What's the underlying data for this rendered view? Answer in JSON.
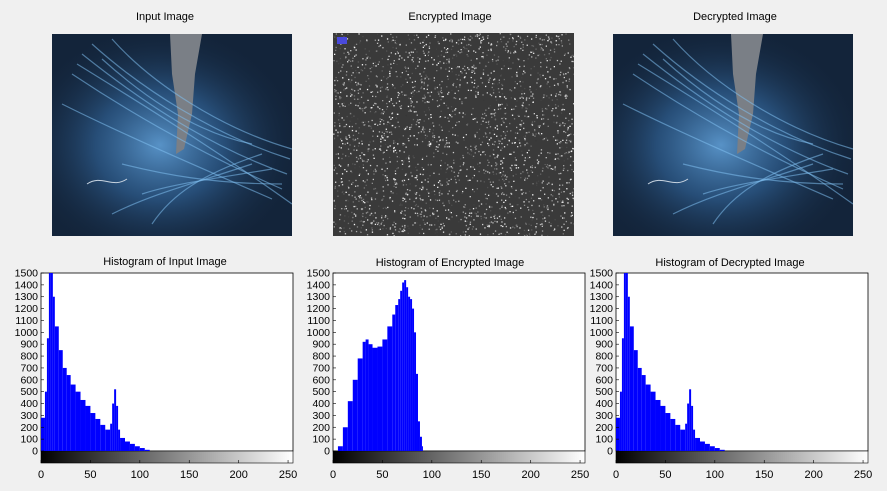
{
  "titles": {
    "input": "Input Image",
    "encrypted": "Encrypted  Image",
    "decrypted": "Decrypted  Image",
    "hist_input": "Histogram of Input Image",
    "hist_encrypted": "Histogram of Encrypted Image",
    "hist_decrypted": "Histogram of Decrypted Image"
  },
  "chart_data": [
    {
      "type": "bar",
      "title": "Histogram of Input Image",
      "xlim": [
        0,
        255
      ],
      "ylim": [
        0,
        1500
      ],
      "xticks": [
        0,
        50,
        100,
        150,
        200,
        250
      ],
      "yticks": [
        0,
        100,
        200,
        300,
        400,
        500,
        600,
        700,
        800,
        900,
        1000,
        1100,
        1200,
        1300,
        1400,
        1500
      ],
      "bar_color": "#0000ff",
      "x": [
        0,
        4,
        6,
        8,
        10,
        12,
        14,
        18,
        22,
        26,
        30,
        35,
        40,
        45,
        50,
        55,
        60,
        65,
        70,
        72,
        74,
        76,
        78,
        80,
        85,
        90,
        95,
        100,
        105,
        110
      ],
      "values": [
        280,
        500,
        950,
        1500,
        1500,
        1300,
        1050,
        850,
        700,
        640,
        560,
        500,
        430,
        380,
        320,
        270,
        220,
        180,
        230,
        400,
        520,
        380,
        180,
        110,
        80,
        60,
        40,
        25,
        10,
        0
      ]
    },
    {
      "type": "bar",
      "title": "Histogram of Encrypted Image",
      "xlim": [
        0,
        255
      ],
      "ylim": [
        0,
        1500
      ],
      "xticks": [
        0,
        50,
        100,
        150,
        200,
        250
      ],
      "yticks": [
        0,
        100,
        200,
        300,
        400,
        500,
        600,
        700,
        800,
        900,
        1000,
        1100,
        1200,
        1300,
        1400,
        1500
      ],
      "bar_color": "#0000ff",
      "x": [
        0,
        5,
        10,
        15,
        20,
        25,
        30,
        33,
        36,
        40,
        45,
        50,
        55,
        60,
        63,
        66,
        68,
        70,
        72,
        74,
        76,
        78,
        80,
        82,
        84,
        86,
        88,
        90,
        91
      ],
      "values": [
        0,
        40,
        200,
        420,
        600,
        780,
        920,
        940,
        900,
        870,
        880,
        940,
        1050,
        1150,
        1230,
        1280,
        1350,
        1420,
        1440,
        1380,
        1300,
        1280,
        1200,
        1000,
        650,
        250,
        120,
        40,
        0
      ]
    },
    {
      "type": "bar",
      "title": "Histogram of Decrypted Image",
      "xlim": [
        0,
        255
      ],
      "ylim": [
        0,
        1500
      ],
      "xticks": [
        0,
        50,
        100,
        150,
        200,
        250
      ],
      "yticks": [
        0,
        100,
        200,
        300,
        400,
        500,
        600,
        700,
        800,
        900,
        1000,
        1100,
        1200,
        1300,
        1400,
        1500
      ],
      "bar_color": "#0000ff",
      "x": [
        0,
        4,
        6,
        8,
        10,
        12,
        14,
        18,
        22,
        26,
        30,
        35,
        40,
        45,
        50,
        55,
        60,
        65,
        70,
        72,
        74,
        76,
        78,
        80,
        85,
        90,
        95,
        100,
        105,
        110
      ],
      "values": [
        280,
        500,
        950,
        1500,
        1500,
        1300,
        1050,
        850,
        700,
        640,
        560,
        500,
        430,
        380,
        320,
        270,
        220,
        180,
        230,
        400,
        520,
        380,
        180,
        110,
        80,
        60,
        40,
        25,
        10,
        0
      ]
    }
  ]
}
